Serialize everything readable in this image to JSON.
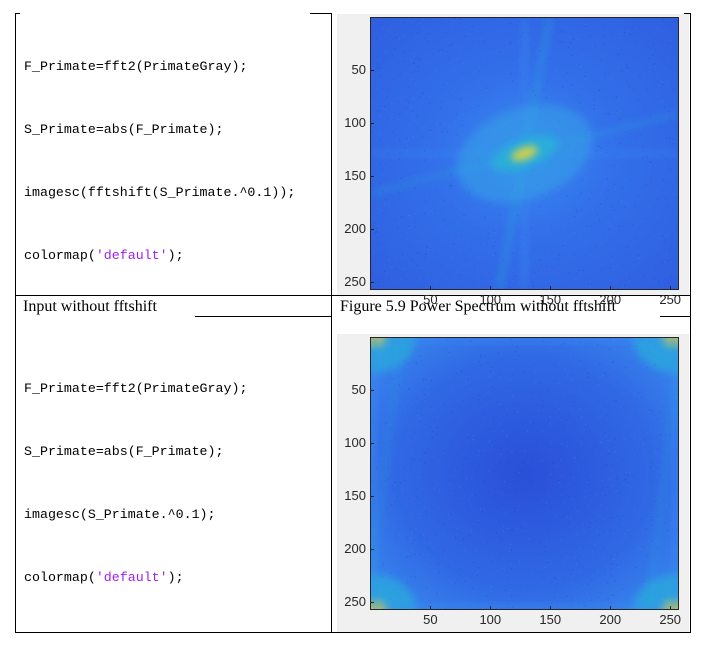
{
  "table": {
    "row1": {
      "code_lines": [
        {
          "pre": "F_Primate=fft2(PrimateGray);",
          "str": "",
          "post": ""
        },
        {
          "pre": "S_Primate=abs(F_Primate);",
          "str": "",
          "post": ""
        },
        {
          "pre": "imagesc(fftshift(S_Primate.^0.1));",
          "str": "",
          "post": ""
        },
        {
          "pre": "colormap(",
          "str": "'default'",
          "post": ");"
        }
      ]
    },
    "row2": {
      "left_caption": "Input without fftshift",
      "right_caption": "Figure 5.9 Power Spectrum without fftshift",
      "code_lines": [
        {
          "pre": "F_Primate=fft2(PrimateGray);",
          "str": "",
          "post": ""
        },
        {
          "pre": "S_Primate=abs(F_Primate);",
          "str": "",
          "post": ""
        },
        {
          "pre": "imagesc(S_Primate.^0.1);",
          "str": "",
          "post": ""
        },
        {
          "pre": "colormap(",
          "str": "'default'",
          "post": ");"
        }
      ]
    }
  },
  "plots": [
    {
      "id": "shifted",
      "colormap": "parula",
      "x_ticks": [
        "50",
        "100",
        "150",
        "200",
        "250"
      ],
      "y_ticks": [
        "50",
        "100",
        "150",
        "200",
        "250"
      ],
      "x_tick_values": [
        50,
        100,
        150,
        200,
        250
      ],
      "y_tick_values": [
        50,
        100,
        150,
        200,
        250
      ],
      "xlim": [
        0.5,
        256.5
      ],
      "ylim": [
        0.5,
        256.5
      ]
    },
    {
      "id": "unshifted",
      "colormap": "parula",
      "x_ticks": [
        "50",
        "100",
        "150",
        "200",
        "250"
      ],
      "y_ticks": [
        "50",
        "100",
        "150",
        "200",
        "250"
      ],
      "x_tick_values": [
        50,
        100,
        150,
        200,
        250
      ],
      "y_tick_values": [
        50,
        100,
        150,
        200,
        250
      ],
      "xlim": [
        0.5,
        256.5
      ],
      "ylim": [
        0.5,
        256.5
      ]
    }
  ],
  "colors": {
    "background_blue": "#2f5fe0",
    "light_blue": "#3a8cf0",
    "cyan": "#27b4d8",
    "yellow": "#e6d43a",
    "string_purple": "#a020f0"
  }
}
